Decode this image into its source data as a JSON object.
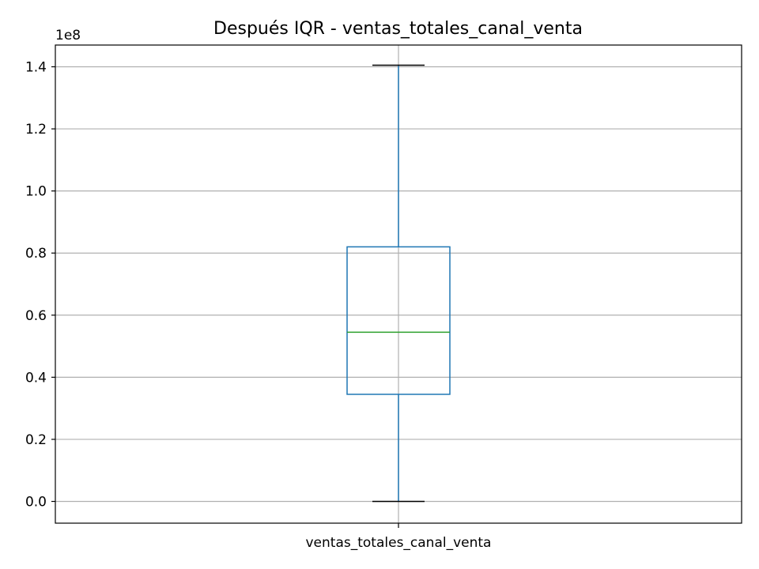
{
  "chart_data": {
    "type": "boxplot",
    "title": "Después IQR - ventas_totales_canal_venta",
    "xlabel": "",
    "ylabel": "",
    "y_offset_label": "1e8",
    "categories": [
      "ventas_totales_canal_venta"
    ],
    "ylim": [
      -0.07,
      1.47
    ],
    "y_ticks": [
      0.0,
      0.2,
      0.4,
      0.6,
      0.8,
      1.0,
      1.2,
      1.4
    ],
    "y_tick_labels": [
      "0.0",
      "0.2",
      "0.4",
      "0.6",
      "0.8",
      "1.0",
      "1.2",
      "1.4"
    ],
    "grid": true,
    "boxes": [
      {
        "name": "ventas_totales_canal_venta",
        "whisker_low": 0.0,
        "q1": 0.345,
        "median": 0.545,
        "q3": 0.82,
        "whisker_high": 1.405
      }
    ],
    "colors": {
      "box": "#1f77b4",
      "median": "#2ca02c",
      "caps": "#000000",
      "grid": "#b0b0b0"
    }
  }
}
